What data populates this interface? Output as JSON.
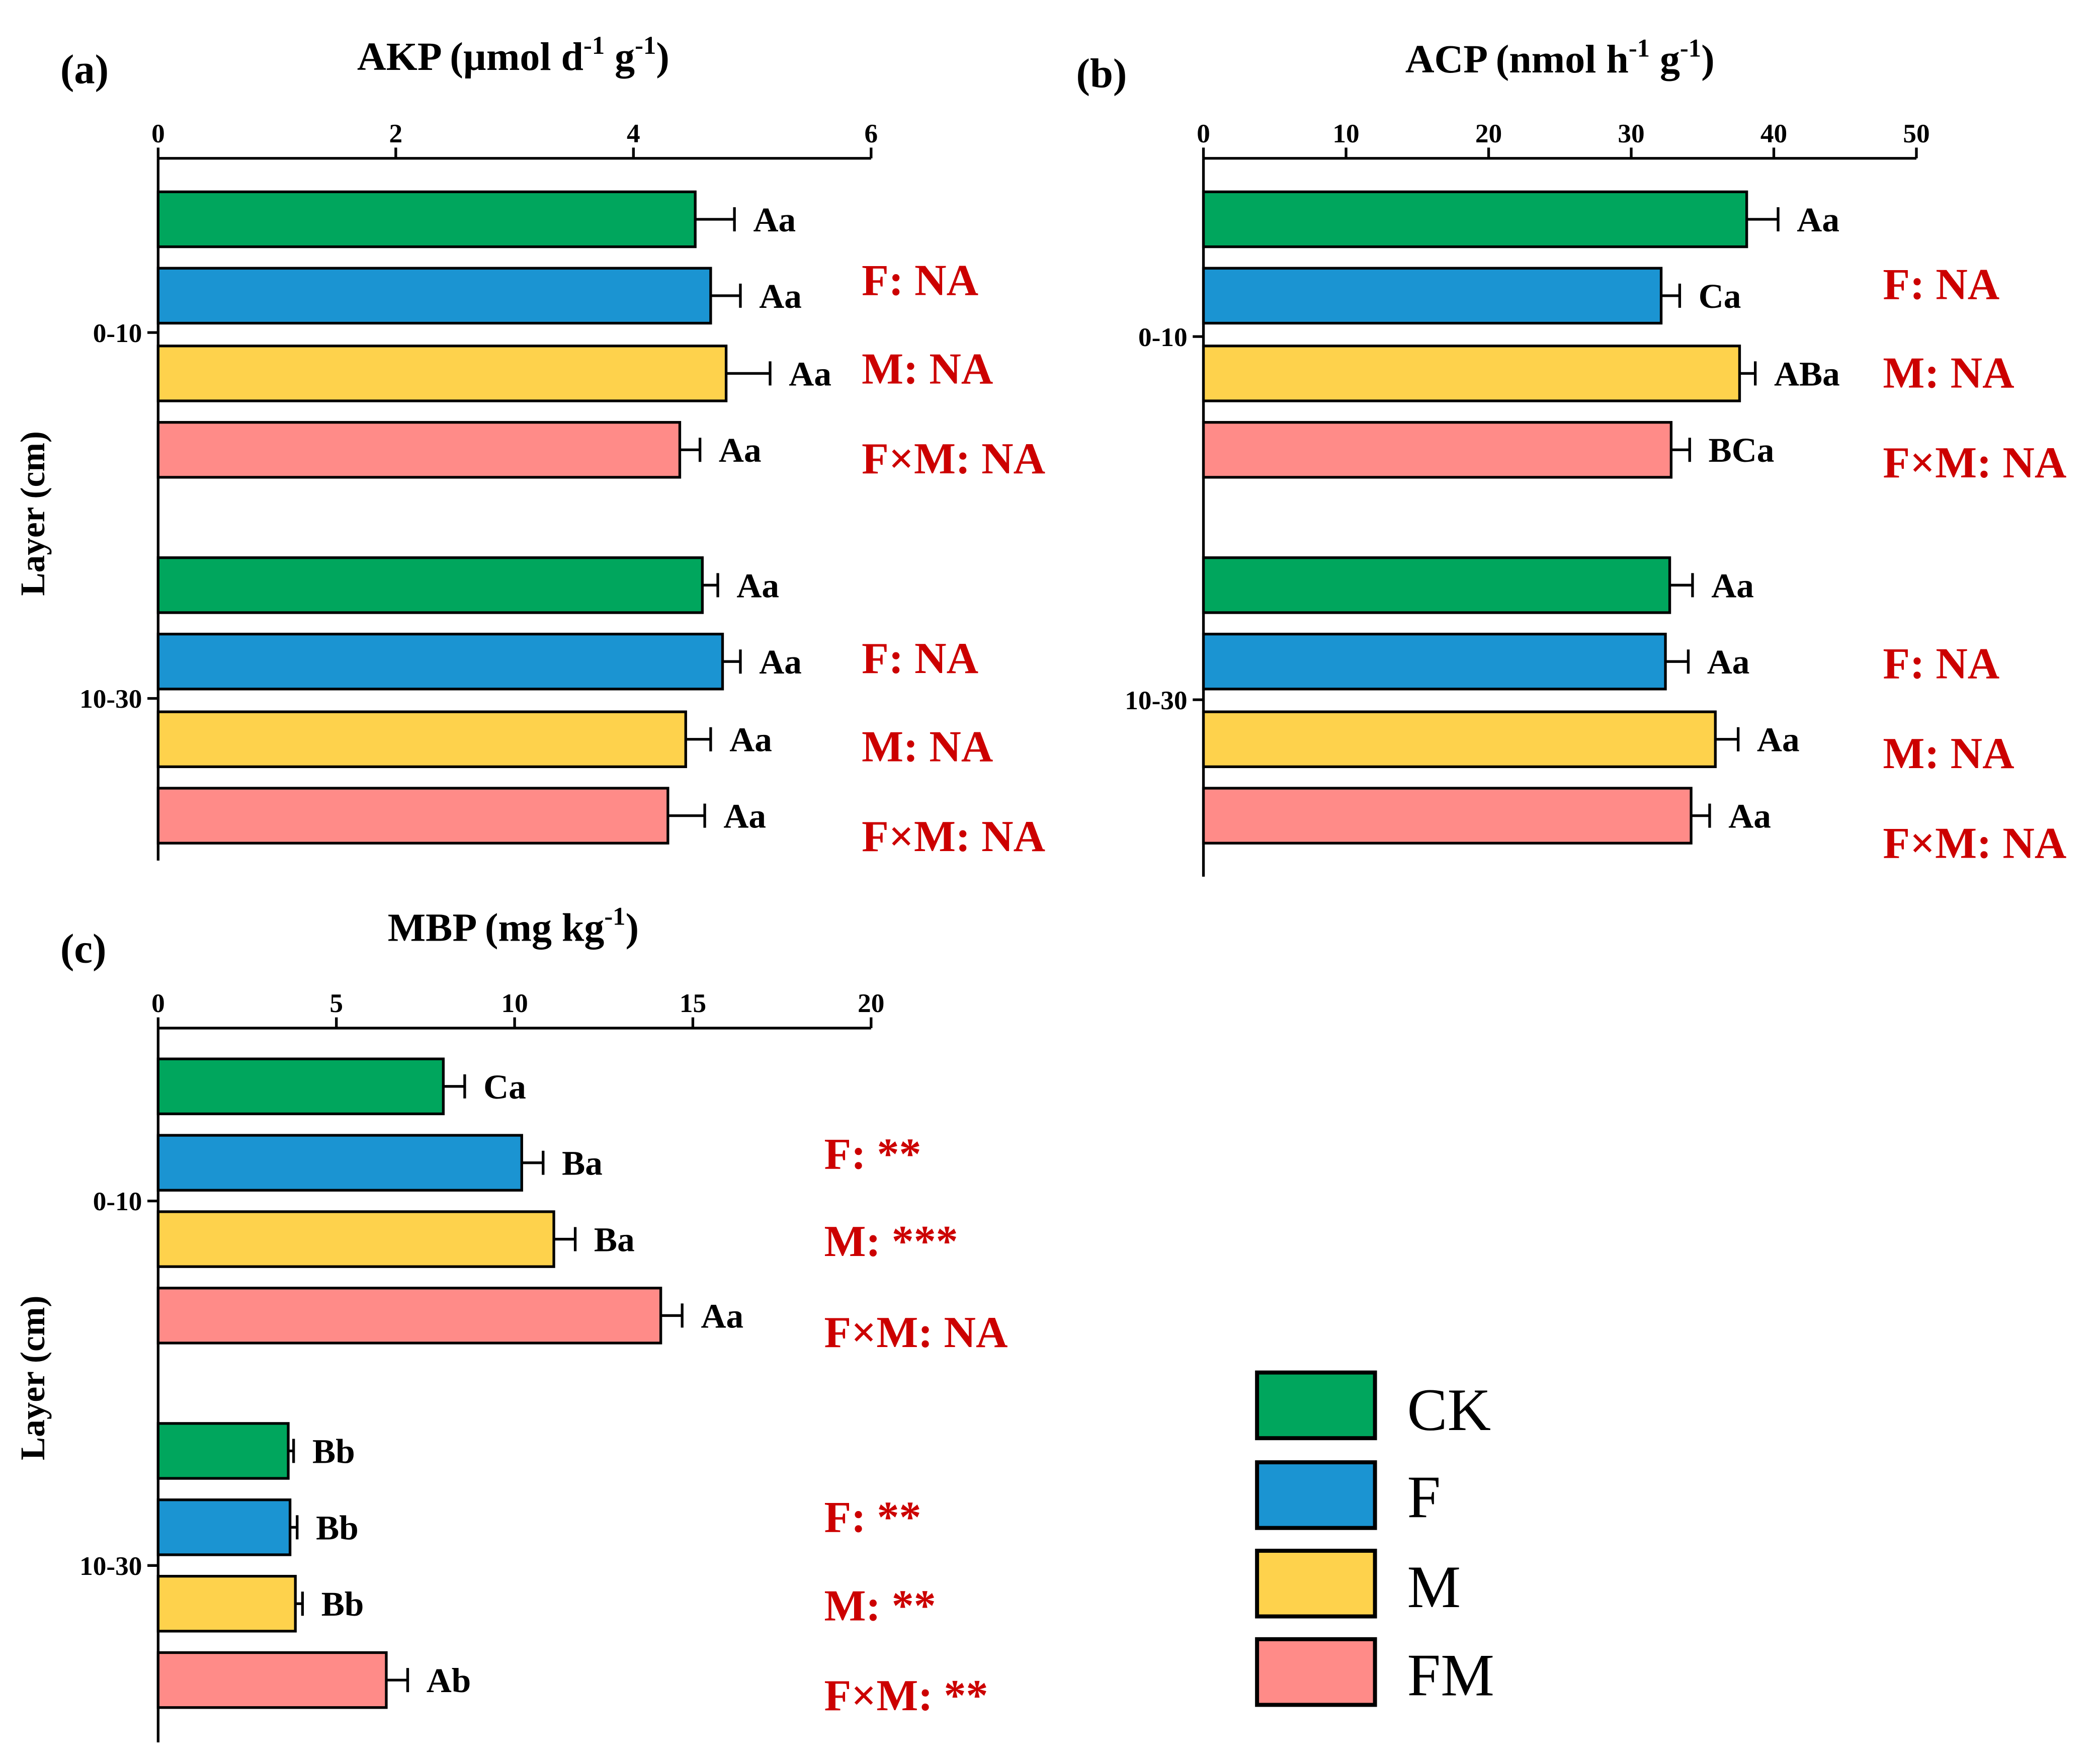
{
  "ylabel": "Layer (cm)",
  "layers": [
    "0-10",
    "10-30"
  ],
  "colors": {
    "CK": "#00a65d",
    "F": "#1b94d2",
    "M": "#fed24c",
    "FM": "#ff8b88",
    "stat_text": "#cc0000",
    "axis": "#000000"
  },
  "legend": {
    "items": [
      {
        "name": "CK",
        "color": "#00a65d"
      },
      {
        "name": "F",
        "color": "#1b94d2"
      },
      {
        "name": "M",
        "color": "#fed24c"
      },
      {
        "name": "FM",
        "color": "#ff8b88"
      }
    ]
  },
  "chart_data": [
    {
      "type": "bar",
      "orientation": "horizontal",
      "panel_label": "(a)",
      "title": "AKP (µmol d-1 g-1)",
      "title_parts": {
        "text1": "AKP (µmol d",
        "sup1": "-1",
        "text2": " g",
        "sup2": "-1",
        "text3": ")"
      },
      "xlim": [
        0,
        6
      ],
      "ticks": [
        0,
        2,
        4,
        6
      ],
      "tick_labels": [
        "0",
        "2",
        "4",
        "6"
      ],
      "ylabel": "",
      "groups": [
        {
          "layer": "0-10",
          "bars": [
            {
              "series": "CK",
              "value": 4.52,
              "error": 0.33,
              "label": "Aa"
            },
            {
              "series": "F",
              "value": 4.65,
              "error": 0.25,
              "label": "Aa"
            },
            {
              "series": "M",
              "value": 4.78,
              "error": 0.37,
              "label": "Aa"
            },
            {
              "series": "FM",
              "value": 4.39,
              "error": 0.17,
              "label": "Aa"
            }
          ],
          "stats": [
            "F: NA",
            "M: NA",
            "F×M: NA"
          ]
        },
        {
          "layer": "10-30",
          "bars": [
            {
              "series": "CK",
              "value": 4.58,
              "error": 0.13,
              "label": "Aa"
            },
            {
              "series": "F",
              "value": 4.75,
              "error": 0.15,
              "label": "Aa"
            },
            {
              "series": "M",
              "value": 4.44,
              "error": 0.21,
              "label": "Aa"
            },
            {
              "series": "FM",
              "value": 4.29,
              "error": 0.31,
              "label": "Aa"
            }
          ],
          "stats": [
            "F: NA",
            "M: NA",
            "F×M: NA"
          ]
        }
      ]
    },
    {
      "type": "bar",
      "orientation": "horizontal",
      "panel_label": "(b)",
      "title": "ACP (nmol h-1 g-1)",
      "title_parts": {
        "text1": "ACP (nmol h",
        "sup1": "-1",
        "text2": " g",
        "sup2": "-1",
        "text3": ")"
      },
      "xlim": [
        0,
        50
      ],
      "ticks": [
        0,
        10,
        20,
        30,
        40,
        50
      ],
      "tick_labels": [
        "0",
        "10",
        "20",
        "30",
        "40",
        "50"
      ],
      "ylabel": "",
      "groups": [
        {
          "layer": "0-10",
          "bars": [
            {
              "series": "CK",
              "value": 38.1,
              "error": 2.2,
              "label": "Aa"
            },
            {
              "series": "F",
              "value": 32.1,
              "error": 1.3,
              "label": "Ca"
            },
            {
              "series": "M",
              "value": 37.6,
              "error": 1.1,
              "label": "ABa"
            },
            {
              "series": "FM",
              "value": 32.8,
              "error": 1.3,
              "label": "BCa"
            }
          ],
          "stats": [
            "F: NA",
            "M: NA",
            "F×M: NA"
          ]
        },
        {
          "layer": "10-30",
          "bars": [
            {
              "series": "CK",
              "value": 32.7,
              "error": 1.6,
              "label": "Aa"
            },
            {
              "series": "F",
              "value": 32.4,
              "error": 1.6,
              "label": "Aa"
            },
            {
              "series": "M",
              "value": 35.9,
              "error": 1.6,
              "label": "Aa"
            },
            {
              "series": "FM",
              "value": 34.2,
              "error": 1.3,
              "label": "Aa"
            }
          ],
          "stats": [
            "F: NA",
            "M: NA",
            "F×M: NA"
          ]
        }
      ]
    },
    {
      "type": "bar",
      "orientation": "horizontal",
      "panel_label": "(c)",
      "title": "MBP (mg kg-1)",
      "title_parts": {
        "text1": "MBP (mg kg",
        "sup1": "-1",
        "text2": ")",
        "sup2": "",
        "text3": ""
      },
      "xlim": [
        0,
        20
      ],
      "ticks": [
        0,
        5,
        10,
        15,
        20
      ],
      "tick_labels": [
        "0",
        "5",
        "10",
        "15",
        "20"
      ],
      "ylabel": "Layer (cm)",
      "groups": [
        {
          "layer": "0-10",
          "bars": [
            {
              "series": "CK",
              "value": 8.0,
              "error": 0.6,
              "label": "Ca"
            },
            {
              "series": "F",
              "value": 10.2,
              "error": 0.6,
              "label": "Ba"
            },
            {
              "series": "M",
              "value": 11.1,
              "error": 0.6,
              "label": "Ba"
            },
            {
              "series": "FM",
              "value": 14.1,
              "error": 0.6,
              "label": "Aa"
            }
          ],
          "stats": [
            "F: **",
            "M: ***",
            "F×M: NA"
          ]
        },
        {
          "layer": "10-30",
          "bars": [
            {
              "series": "CK",
              "value": 3.65,
              "error": 0.15,
              "label": "Bb"
            },
            {
              "series": "F",
              "value": 3.7,
              "error": 0.2,
              "label": "Bb"
            },
            {
              "series": "M",
              "value": 3.85,
              "error": 0.2,
              "label": "Bb"
            },
            {
              "series": "FM",
              "value": 6.4,
              "error": 0.6,
              "label": "Ab"
            }
          ],
          "stats": [
            "F: **",
            "M: **",
            "F×M: **"
          ]
        }
      ]
    }
  ]
}
